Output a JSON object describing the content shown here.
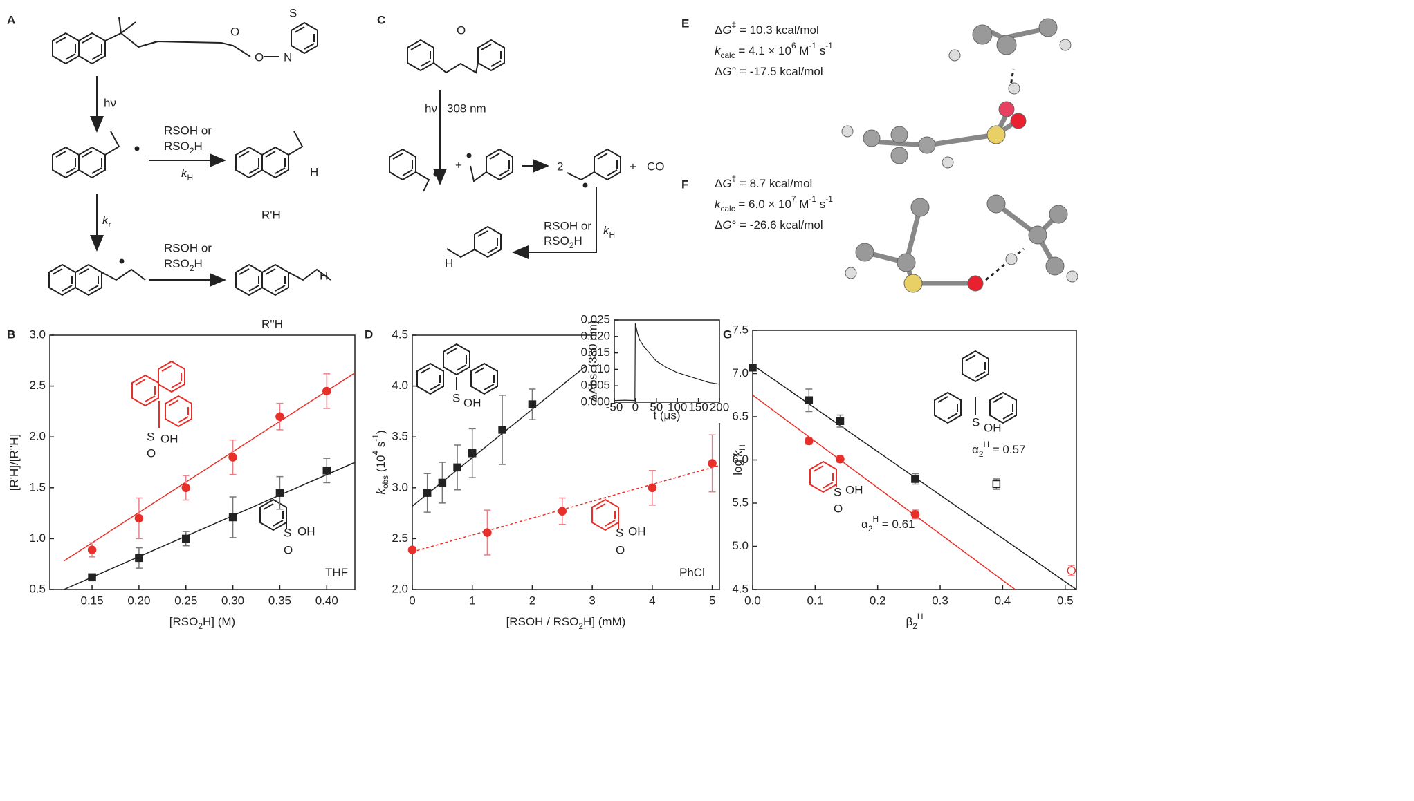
{
  "panel_labels": [
    "A",
    "B",
    "C",
    "D",
    "E",
    "F",
    "G"
  ],
  "scheme_a": [
    "S",
    "O",
    "O",
    "N",
    "hν",
    "RSOH or",
    [
      "RSO",
      "2",
      "H"
    ],
    [
      "k",
      "H"
    ],
    "H",
    "R'H",
    [
      "k",
      "r"
    ],
    "RSOH or",
    [
      "RSO",
      "2",
      "H"
    ],
    "H",
    "R''H"
  ],
  "scheme_c": [
    "O",
    "hν",
    "308 nm",
    "+",
    "2",
    "+",
    "CO",
    "RSOH or",
    [
      "RSO",
      "2",
      "H"
    ],
    [
      "k",
      "H"
    ],
    "H"
  ],
  "energies_e": [
    [
      "Δ",
      "G",
      "‡",
      " = 10.3 kcal/mol"
    ],
    [
      "k",
      "calc",
      " = 4.1 × 10",
      "6",
      " M",
      "-1",
      " s",
      "-1"
    ],
    [
      "Δ",
      "G",
      "°",
      " = -17.5 kcal/mol"
    ]
  ],
  "energies_f": [
    [
      "Δ",
      "G",
      "‡",
      " = 8.7 kcal/mol"
    ],
    [
      "k",
      "calc",
      " = 6.0 × 10",
      "7",
      " M",
      "-1",
      " s",
      "-1"
    ],
    [
      "Δ",
      "G",
      "°",
      " = -26.6 kcal/mol"
    ]
  ],
  "chart_data": [
    {
      "type": "scatter",
      "y_label": [
        "[R'H]/[R''H]"
      ],
      "x_label": [
        "[RSO",
        "2",
        "H] (M)"
      ],
      "xlim": [
        0.105,
        0.43
      ],
      "xticks": [
        0.15,
        {
          "value": 0.2,
          "label": "0.20"
        },
        0.25,
        {
          "value": 0.3,
          "label": "0.30"
        },
        0.35,
        {
          "value": 0.4,
          "label": "0.40"
        }
      ],
      "ylim": [
        0.5,
        3.0
      ],
      "yticks": [
        0.5,
        {
          "value": 1,
          "label": "1.0"
        },
        1.5,
        {
          "value": 2,
          "label": "2.0"
        },
        2.5,
        {
          "value": 3,
          "label": "3.0"
        }
      ],
      "annotations": [
        [
          "THF"
        ]
      ],
      "structure_labels": [
        "S",
        "OH",
        "O",
        "S",
        "OH",
        "O"
      ],
      "series": [
        {
          "color": "#222222",
          "marker": "square",
          "x": [
            0.15,
            0.2,
            0.25,
            0.3,
            0.35,
            0.4
          ],
          "values": [
            0.62,
            0.81,
            1.0,
            1.21,
            1.45,
            1.67
          ],
          "errors": [
            0.02,
            0.1,
            0.07,
            0.2,
            0.16,
            0.12
          ],
          "fit": {
            "x": [
              0.12,
              0.43
            ],
            "values": [
              0.5,
              1.75
            ]
          }
        },
        {
          "color": "#e8302a",
          "marker": "circle",
          "x": [
            0.15,
            0.2,
            0.25,
            0.3,
            0.35,
            0.4
          ],
          "values": [
            0.89,
            1.2,
            1.5,
            1.8,
            2.2,
            2.45
          ],
          "errors": [
            0.07,
            0.2,
            0.12,
            0.17,
            0.13,
            0.17
          ],
          "fit": {
            "x": [
              0.12,
              0.43
            ],
            "values": [
              0.78,
              2.63
            ]
          }
        }
      ]
    },
    {
      "type": "scatter",
      "y_label": [
        "k",
        "obs",
        " (10",
        "4",
        " s",
        "-1",
        ")"
      ],
      "x_label": [
        "[RSOH / RSO",
        "2",
        "H] (mM)"
      ],
      "xlim": [
        0,
        5.12
      ],
      "xticks": [
        0,
        1,
        2,
        3,
        4,
        5
      ],
      "ylim": [
        2.0,
        4.5
      ],
      "yticks": [
        {
          "value": 2,
          "label": "2.0"
        },
        2.5,
        {
          "value": 3,
          "label": "3.0"
        },
        3.5,
        {
          "value": 4,
          "label": "4.0"
        },
        4.5
      ],
      "annotations": [
        [
          "PhCl"
        ]
      ],
      "structure_labels": [
        "S",
        "OH",
        "S",
        "OH",
        "O"
      ],
      "series": [
        {
          "color": "#222222",
          "marker": "square",
          "x": [
            0.25,
            0.5,
            0.75,
            1,
            1.5,
            2
          ],
          "values": [
            2.95,
            3.05,
            3.2,
            3.34,
            3.57,
            3.82
          ],
          "errors": [
            0.19,
            0.2,
            0.22,
            0.24,
            0.34,
            0.15
          ],
          "fit": {
            "x": [
              0,
              2.9
            ],
            "values": [
              2.82,
              4.2
            ]
          }
        },
        {
          "color": "#e8302a",
          "marker": "circle",
          "x": [
            0,
            1.25,
            2.5,
            4,
            5
          ],
          "values": [
            2.39,
            2.56,
            2.77,
            3.0,
            3.24
          ],
          "errors": [
            null,
            0.22,
            0.13,
            0.17,
            0.28
          ],
          "fit": {
            "x": [
              0,
              5.12
            ],
            "values": [
              2.37,
              3.22
            ],
            "dashed": true
          }
        }
      ],
      "inset": {
        "x_label": "t (μs)",
        "y_label": "ΔAbs. (330 nm)",
        "xlim": [
          -50,
          200
        ],
        "xticks": [
          -50,
          0,
          50,
          100,
          150,
          200
        ],
        "ylim": [
          0,
          0.025
        ],
        "yticks": [
          {
            "value": 0,
            "label": "0.000"
          },
          0.005,
          {
            "value": 0.01,
            "label": "0.010"
          },
          0.015,
          {
            "value": 0.02,
            "label": "0.020"
          },
          0.025
        ],
        "x": [
          -50,
          -25,
          -1,
          0,
          5,
          10,
          20,
          30,
          50,
          75,
          100,
          125,
          150,
          175,
          200
        ],
        "values": [
          0.0005,
          0.0006,
          0.0005,
          0.024,
          0.021,
          0.019,
          0.017,
          0.0155,
          0.0125,
          0.0105,
          0.009,
          0.008,
          0.007,
          0.006,
          0.0055
        ]
      }
    },
    {
      "type": "scatter",
      "y_label": [
        "log ",
        "k",
        "H"
      ],
      "x_label": [
        "β",
        "2",
        "H"
      ],
      "xlim": [
        0,
        0.518
      ],
      "xticks": [
        {
          "value": 0,
          "label": "0.0"
        },
        0.1,
        0.2,
        0.3,
        0.4,
        0.5
      ],
      "ylim": [
        4.5,
        7.5
      ],
      "yticks": [
        4.5,
        {
          "value": 5,
          "label": "5.0"
        },
        5.5,
        {
          "value": 6,
          "label": "6.0"
        },
        6.5,
        {
          "value": 7,
          "label": "7.0"
        },
        7.5
      ],
      "annotations": [
        [
          "α",
          "2",
          "H",
          " = 0.57"
        ],
        [
          "α",
          "2",
          "H",
          " = 0.61"
        ]
      ],
      "structure_labels": [
        "S",
        "OH",
        "S",
        "OH",
        "O"
      ],
      "series": [
        {
          "color": "#222222",
          "marker": "square",
          "x": [
            0,
            0.09,
            0.14,
            0.26
          ],
          "values": [
            7.07,
            6.69,
            6.45,
            5.78
          ],
          "errors": [
            0.03,
            0.13,
            0.07,
            0.06
          ],
          "fit": {
            "x": [
              0,
              0.518
            ],
            "values": [
              7.1,
              4.5
            ]
          }
        },
        {
          "color": "#222222",
          "marker": "open-square",
          "x": [
            0.39
          ],
          "values": [
            5.72
          ],
          "errors": [
            0.06
          ]
        },
        {
          "color": "#e8302a",
          "marker": "circle",
          "x": [
            0.09,
            0.14,
            0.26
          ],
          "values": [
            6.22,
            6.01,
            5.37
          ],
          "errors": [
            0.04,
            0.04,
            0.05
          ],
          "fit": {
            "x": [
              0,
              0.42
            ],
            "values": [
              6.75,
              4.5
            ]
          }
        },
        {
          "color": "#e8302a",
          "marker": "open-circle",
          "x": [
            0.51
          ],
          "values": [
            4.72
          ],
          "errors": [
            0.06
          ]
        }
      ]
    }
  ]
}
